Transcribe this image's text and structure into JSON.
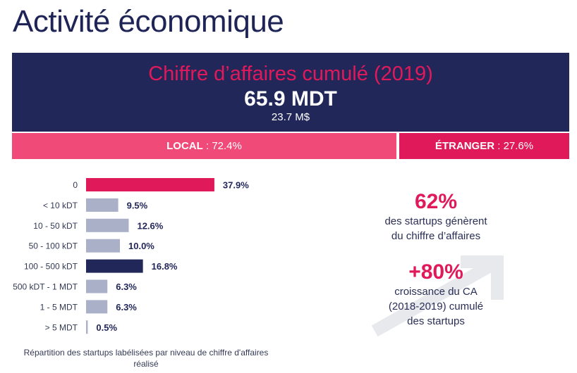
{
  "page": {
    "title": "Activité économique"
  },
  "banner": {
    "title": "Chiffre d’affaires cumulé (2019)",
    "value": "65.9 MDT",
    "value_usd": "23.7 M$"
  },
  "split": {
    "local": {
      "label": "LOCAL",
      "value": ": 72.4%",
      "share": 72.4
    },
    "foreign": {
      "label": "ÉTRANGER",
      "value": ": 27.6%",
      "share": 27.6
    }
  },
  "chart_data": {
    "type": "bar",
    "orientation": "horizontal",
    "categories": [
      "0",
      "< 10 kDT",
      "10 - 50 kDT",
      "50 - 100 kDT",
      "100 - 500 kDT",
      "500 kDT - 1 MDT",
      "1 - 5 MDT",
      "> 5 MDT"
    ],
    "values": [
      37.9,
      9.5,
      12.6,
      10.0,
      16.8,
      6.3,
      6.3,
      0.5
    ],
    "value_labels": [
      "37.9%",
      "9.5%",
      "12.6%",
      "10.0%",
      "16.8%",
      "6.3%",
      "6.3%",
      "0.5%"
    ],
    "bar_colors": [
      "#e0195a",
      "#a9b0c8",
      "#a9b0c8",
      "#a9b0c8",
      "#22275a",
      "#a9b0c8",
      "#a9b0c8",
      "#a9b0c8"
    ],
    "xlim": [
      0,
      40
    ],
    "caption": "Répartition des startups labélisées par niveau de chiffre d'affaires réalisé"
  },
  "stats": [
    {
      "big": "62%",
      "text_lines": [
        "des startups génèrent",
        "du chiffre d’affaires"
      ]
    },
    {
      "big": "+80%",
      "text_lines": [
        "croissance du CA",
        "(2018-2019) cumulé",
        "des startups"
      ]
    }
  ],
  "colors": {
    "navy": "#22275a",
    "accent": "#e0195a",
    "local_pink": "#ef4a78",
    "bar_grey": "#a9b0c8",
    "arrow_grey": "#e8e9ed"
  }
}
